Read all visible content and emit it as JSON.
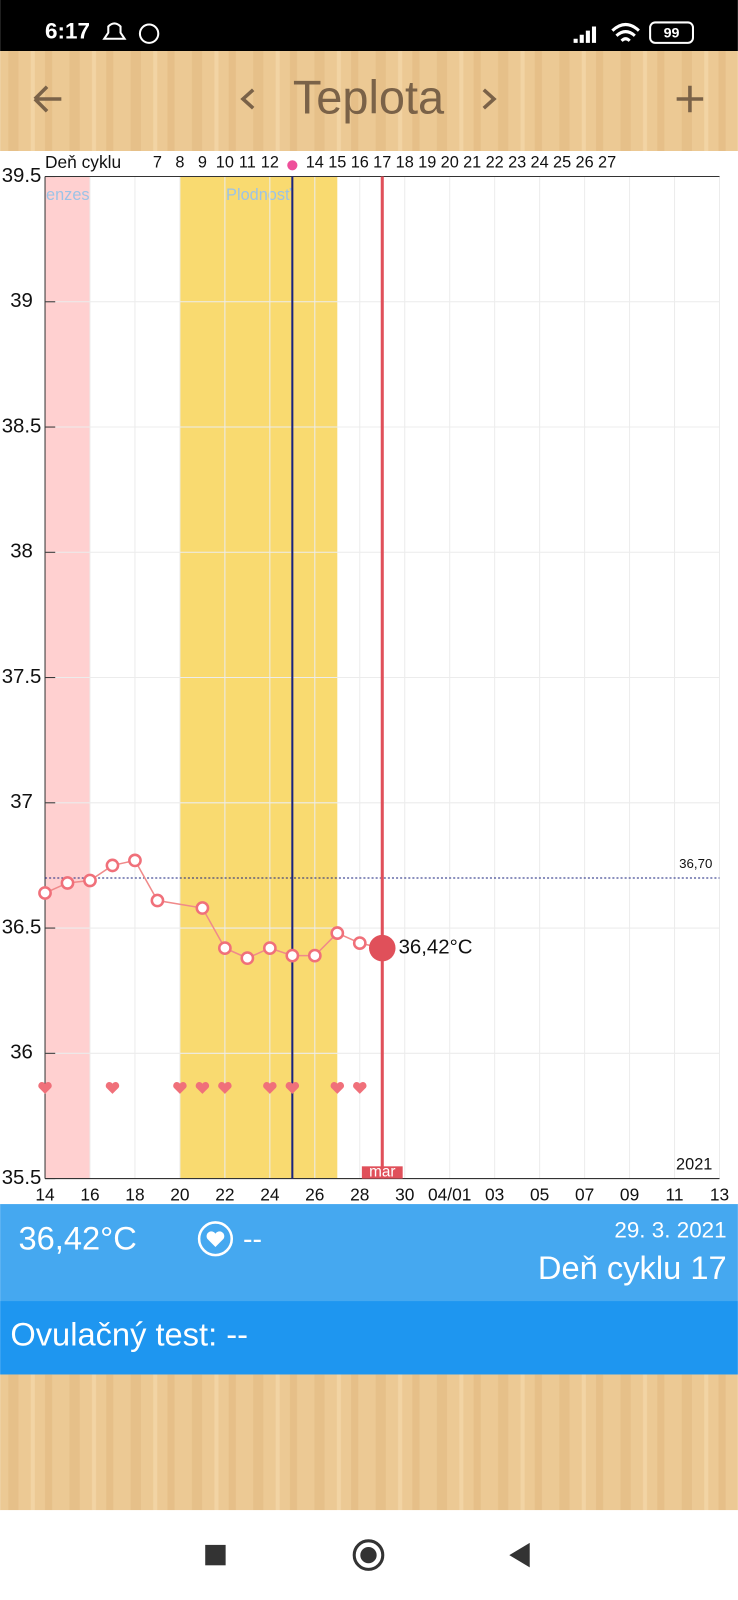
{
  "status_bar": {
    "time": "6:17",
    "battery": "99"
  },
  "toolbar": {
    "title": "Teplota"
  },
  "chart_data": {
    "type": "line",
    "cycle_day_label": "Deň cyklu",
    "cycle_days": [
      null,
      null,
      null,
      null,
      null,
      "7",
      "8",
      "9",
      "10",
      "11",
      "12",
      null,
      "14",
      "15",
      "16",
      "17",
      "18",
      "19",
      "20",
      "21",
      "22",
      "23",
      "24",
      "25",
      "26",
      "27"
    ],
    "x": [
      0,
      1,
      2,
      3,
      4,
      5,
      7,
      8,
      9,
      10,
      11,
      12,
      13,
      14,
      15
    ],
    "values": [
      36.64,
      36.68,
      36.69,
      36.75,
      36.77,
      36.61,
      36.58,
      36.42,
      36.38,
      36.42,
      36.39,
      36.39,
      36.48,
      36.44,
      36.42
    ],
    "color": "#f08a8a",
    "xlim": [
      0,
      30
    ],
    "xticks": [
      {
        "value": 0,
        "label": "14"
      },
      {
        "value": 2,
        "label": "16"
      },
      {
        "value": 4,
        "label": "18"
      },
      {
        "value": 6,
        "label": "20"
      },
      {
        "value": 8,
        "label": "22"
      },
      {
        "value": 10,
        "label": "24"
      },
      {
        "value": 12,
        "label": "26"
      },
      {
        "value": 14,
        "label": "28"
      },
      {
        "value": 16,
        "label": "30"
      },
      {
        "value": 18,
        "label": "04/01"
      },
      {
        "value": 20,
        "label": "03"
      },
      {
        "value": 22,
        "label": "05"
      },
      {
        "value": 24,
        "label": "07"
      },
      {
        "value": 26,
        "label": "09"
      },
      {
        "value": 28,
        "label": "11"
      },
      {
        "value": 30,
        "label": "13"
      }
    ],
    "ylim": [
      35.5,
      39.5
    ],
    "yticks": [
      35.5,
      36,
      36.5,
      37,
      37.5,
      38,
      38.5,
      39,
      39.5
    ],
    "grid": true,
    "bands": [
      {
        "label": "enzes",
        "from": 0,
        "to": 2,
        "color": "#ffd0d0"
      },
      {
        "label": "Plodnosť",
        "from": 6,
        "to": 13,
        "color": "#f9da70"
      }
    ],
    "ovulation_x": 11,
    "current": {
      "x": 15,
      "value_label": "36,42°C"
    },
    "reference": {
      "value": 36.7,
      "label": "36,70"
    },
    "hearts_x": [
      0,
      3,
      6,
      7,
      8,
      10,
      11,
      13,
      14
    ],
    "year": "2021",
    "month": "mar"
  },
  "info": {
    "temperature": "36,42°C",
    "intercourse": "--",
    "date": "29. 3. 2021",
    "cycle_day": "Deň cyklu 17",
    "ovulation_test": "Ovulačný test: --"
  }
}
